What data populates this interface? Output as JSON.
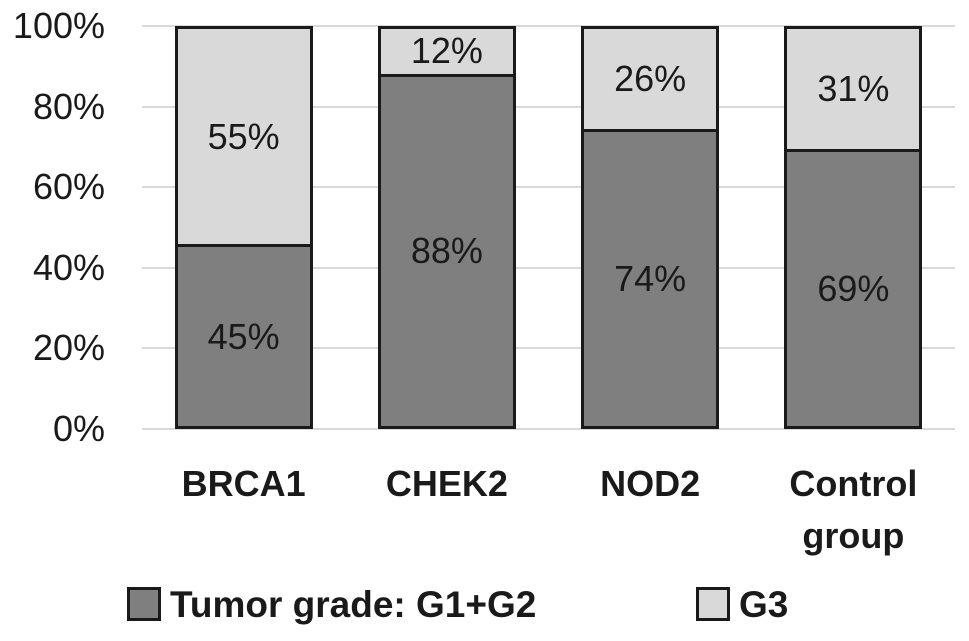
{
  "colors": {
    "background": "#ffffff",
    "text": "#1a1a1a",
    "bar_border": "#1a1a1a",
    "gridline": "#d9d9d9",
    "series_dark": "#7f7f7f",
    "series_light": "#d9d9d9"
  },
  "chart_data": {
    "type": "bar",
    "stacked": true,
    "orientation": "vertical",
    "title": "",
    "xlabel": "",
    "ylabel": "",
    "categories": [
      "BRCA1",
      "CHEK2",
      "NOD2",
      "Control group"
    ],
    "series": [
      {
        "name": "Tumor grade: G1+G2",
        "color": "#7f7f7f",
        "values": [
          45,
          88,
          74,
          69
        ]
      },
      {
        "name": "G3",
        "color": "#d9d9d9",
        "values": [
          55,
          12,
          26,
          31
        ]
      }
    ],
    "data_label_format": "{value}%",
    "y_ticks": [
      "0%",
      "20%",
      "40%",
      "60%",
      "80%",
      "100%"
    ],
    "ylim": [
      0,
      100
    ],
    "grid": true,
    "legend_position": "bottom"
  }
}
